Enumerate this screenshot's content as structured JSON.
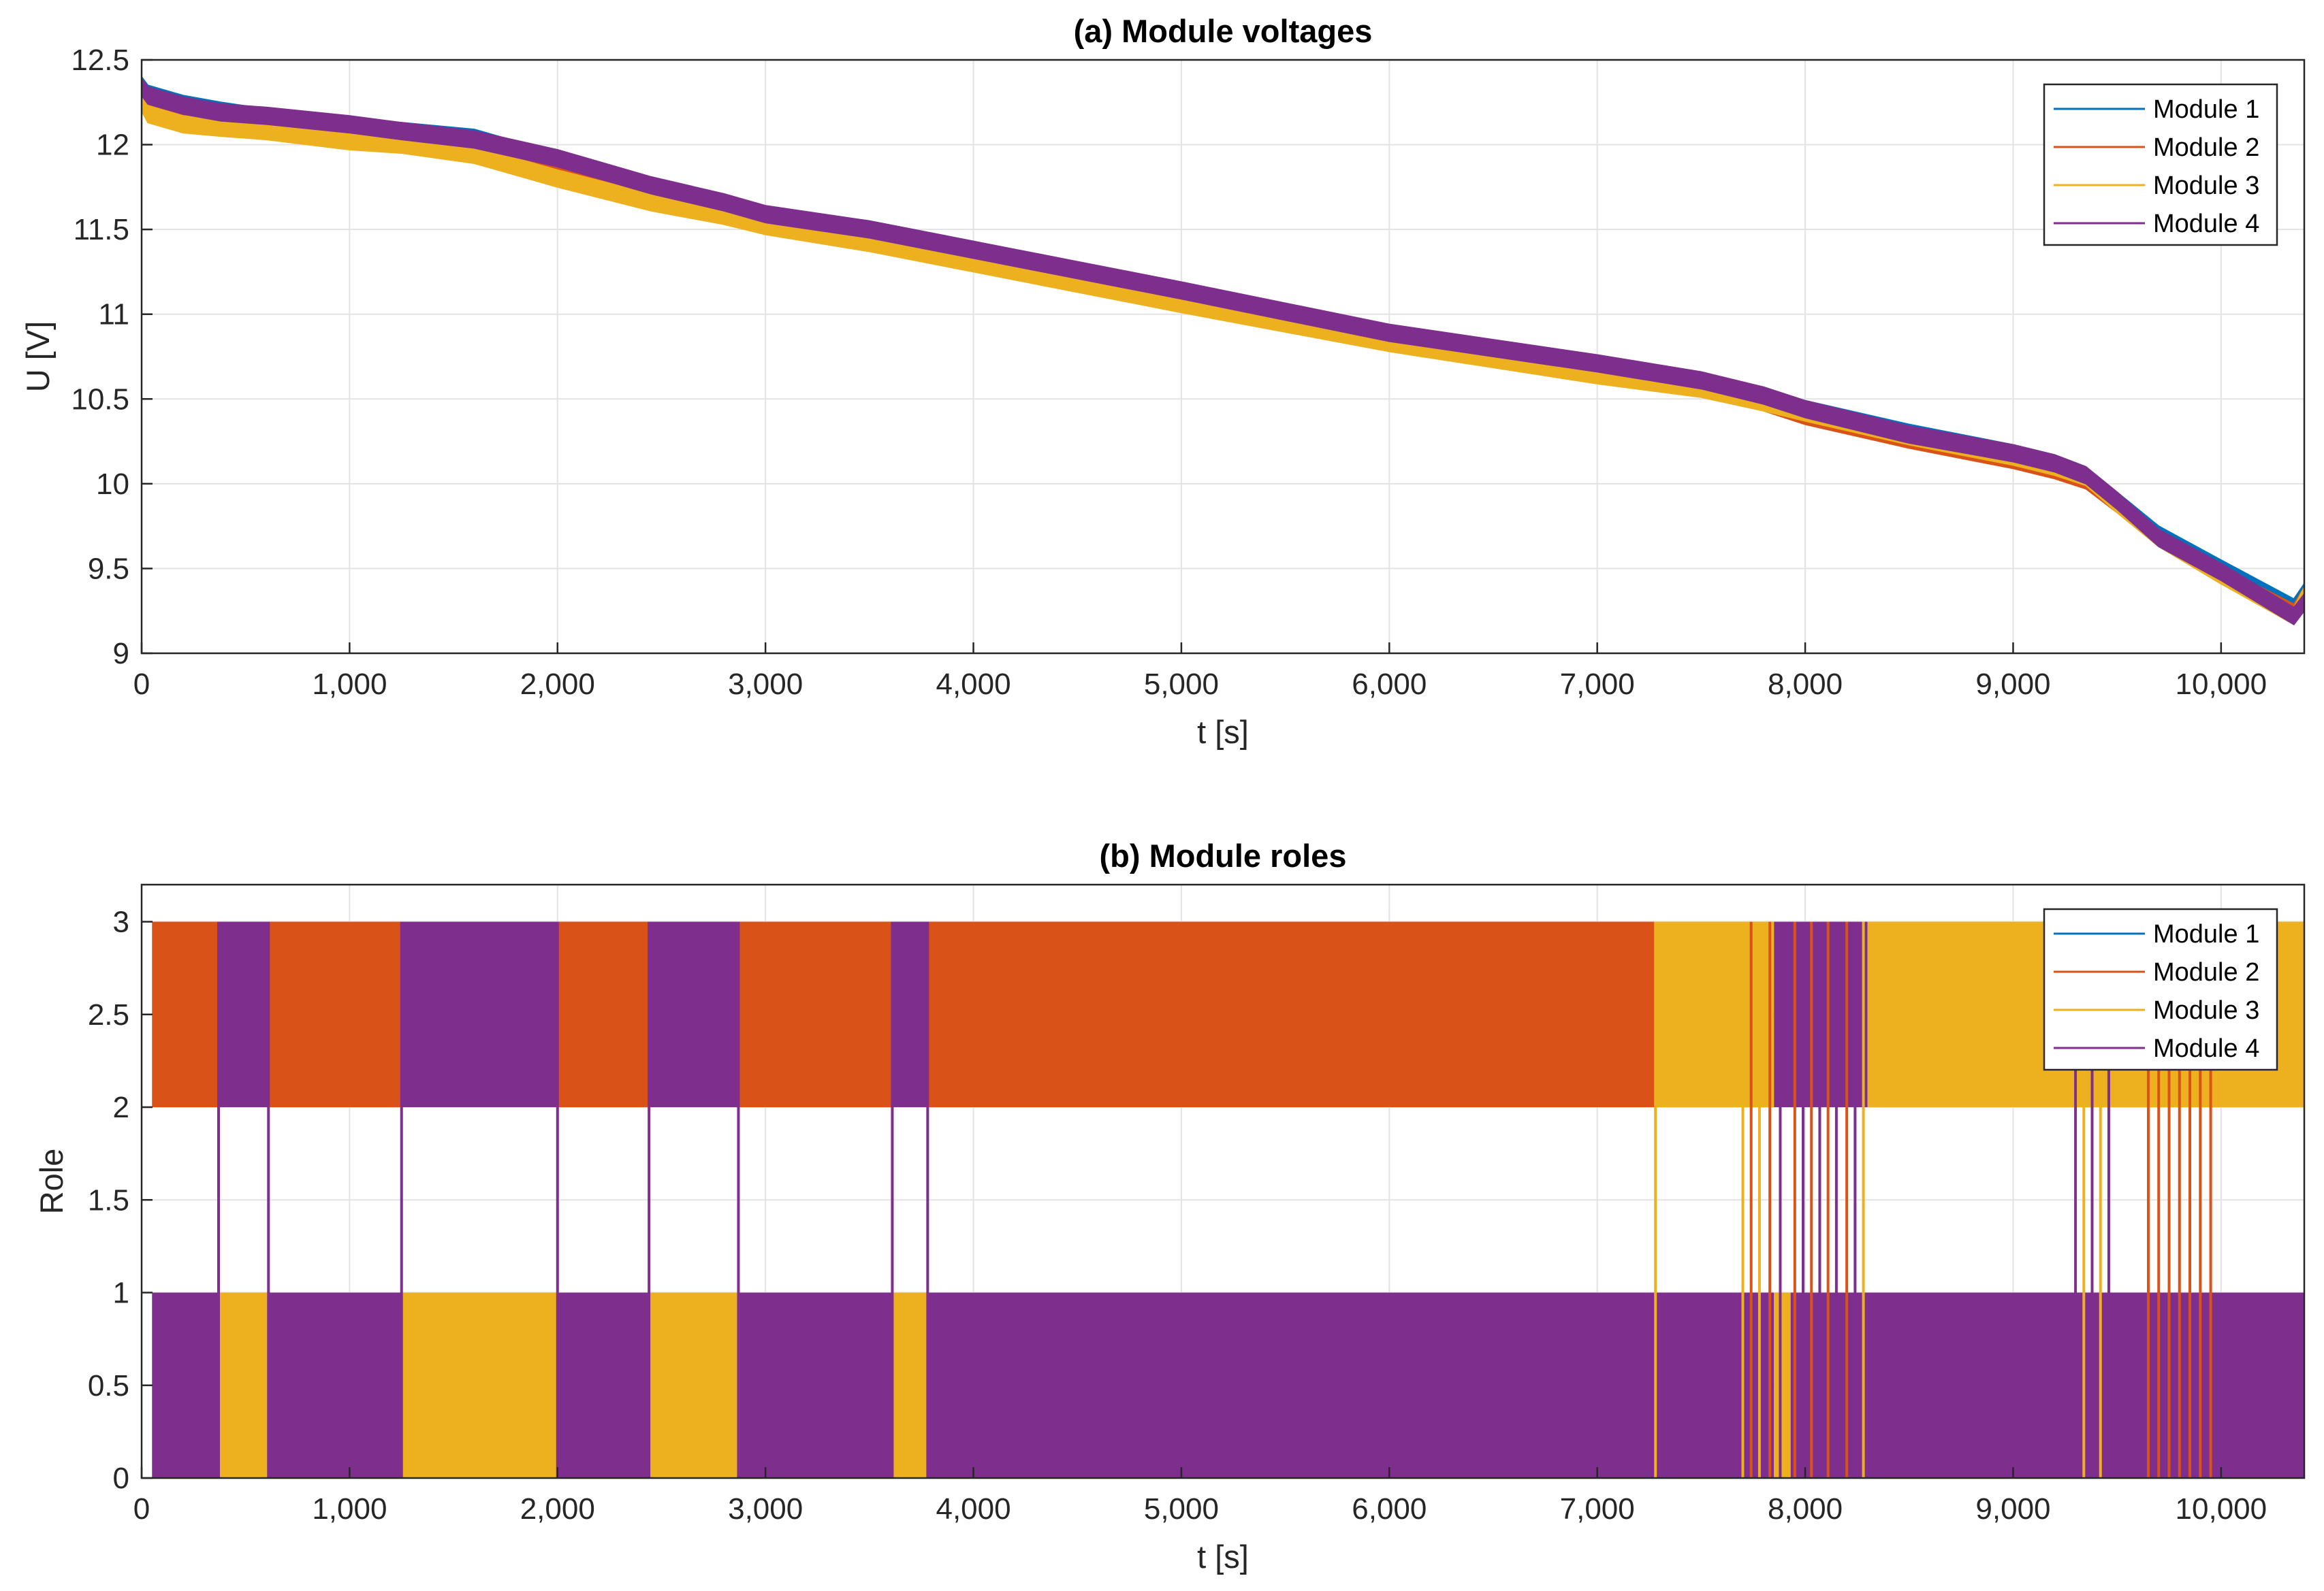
{
  "chart_data": [
    {
      "type": "line",
      "title": "(a) Module voltages",
      "xlabel": "t [s]",
      "ylabel": "U [V]",
      "xlim": [
        0,
        10400
      ],
      "ylim": [
        9,
        12.5
      ],
      "grid": true,
      "legend_position": "top-right",
      "xticks": [
        0,
        1000,
        2000,
        3000,
        4000,
        5000,
        6000,
        7000,
        8000,
        9000,
        10000
      ],
      "xtick_labels": [
        "0",
        "1,000",
        "2,000",
        "3,000",
        "4,000",
        "5,000",
        "6,000",
        "7,000",
        "8,000",
        "9,000",
        "10,000"
      ],
      "yticks": [
        9,
        9.5,
        10,
        10.5,
        11,
        11.5,
        12,
        12.5
      ],
      "ytick_labels": [
        "9",
        "9.5",
        "10",
        "10.5",
        "11",
        "11.5",
        "12",
        "12.5"
      ],
      "x": [
        0,
        30,
        200,
        380,
        600,
        1000,
        1250,
        1600,
        2000,
        2450,
        2800,
        3000,
        3500,
        4000,
        5000,
        6000,
        7000,
        7500,
        7800,
        8000,
        8500,
        9000,
        9200,
        9350,
        9500,
        9700,
        10000,
        10350,
        10400
      ],
      "series": [
        {
          "name": "Module 1",
          "color": "#0072BD",
          "values": [
            12.35,
            12.3,
            12.24,
            12.2,
            12.16,
            12.1,
            12.08,
            12.04,
            11.9,
            11.75,
            11.65,
            11.58,
            11.5,
            11.38,
            11.12,
            10.88,
            10.7,
            10.6,
            10.52,
            10.44,
            10.3,
            10.18,
            10.12,
            10.05,
            9.9,
            9.7,
            9.5,
            9.27,
            9.36
          ]
        },
        {
          "name": "Module 2",
          "color": "#D95319",
          "values": [
            12.33,
            12.28,
            12.22,
            12.18,
            12.14,
            12.08,
            12.06,
            12.02,
            11.88,
            11.73,
            11.63,
            11.56,
            11.48,
            11.36,
            11.1,
            10.86,
            10.68,
            10.58,
            10.48,
            10.4,
            10.26,
            10.14,
            10.08,
            10.02,
            9.88,
            9.68,
            9.46,
            9.24,
            9.34
          ]
        },
        {
          "name": "Module 3",
          "color": "#EDB120",
          "values": [
            12.25,
            12.18,
            12.12,
            12.1,
            12.08,
            12.02,
            12.0,
            11.94,
            11.8,
            11.66,
            11.58,
            11.52,
            11.42,
            11.3,
            11.06,
            10.83,
            10.64,
            10.56,
            10.48,
            10.42,
            10.28,
            10.16,
            10.1,
            10.04,
            9.88,
            9.68,
            9.46,
            9.22,
            9.34
          ]
        },
        {
          "name": "Module 4",
          "color": "#7E2F8E",
          "values": [
            12.34,
            12.29,
            12.23,
            12.19,
            12.17,
            12.12,
            12.08,
            12.03,
            11.92,
            11.76,
            11.66,
            11.59,
            11.5,
            11.38,
            11.14,
            10.89,
            10.71,
            10.61,
            10.52,
            10.44,
            10.29,
            10.18,
            10.12,
            10.05,
            9.9,
            9.68,
            9.48,
            9.22,
            9.3
          ]
        }
      ],
      "band_width_V": 0.1
    },
    {
      "type": "area",
      "title": "(b) Module roles",
      "xlabel": "t [s]",
      "ylabel": "Role",
      "xlim": [
        0,
        10400
      ],
      "ylim": [
        0,
        3.2
      ],
      "grid": true,
      "legend_position": "top-right",
      "xticks": [
        0,
        1000,
        2000,
        3000,
        4000,
        5000,
        6000,
        7000,
        8000,
        9000,
        10000
      ],
      "xtick_labels": [
        "0",
        "1,000",
        "2,000",
        "3,000",
        "4,000",
        "5,000",
        "6,000",
        "7,000",
        "8,000",
        "9,000",
        "10,000"
      ],
      "yticks": [
        0,
        0.5,
        1,
        1.5,
        2,
        2.5,
        3
      ],
      "ytick_labels": [
        "0",
        "0.5",
        "1",
        "1.5",
        "2",
        "2.5",
        "3"
      ],
      "series": [
        {
          "name": "Module 1",
          "color": "#0072BD"
        },
        {
          "name": "Module 2",
          "color": "#D95319"
        },
        {
          "name": "Module 3",
          "color": "#EDB120"
        },
        {
          "name": "Module 4",
          "color": "#7E2F8E"
        }
      ],
      "bands": [
        {
          "range": [
            2,
            3
          ],
          "segments": [
            {
              "x0": 50,
              "x1": 370,
              "series": "Module 2"
            },
            {
              "x0": 370,
              "x1": 610,
              "series": "Module 4"
            },
            {
              "x0": 610,
              "x1": 1250,
              "series": "Module 2"
            },
            {
              "x0": 1250,
              "x1": 2000,
              "series": "Module 4"
            },
            {
              "x0": 2000,
              "x1": 2440,
              "series": "Module 2"
            },
            {
              "x0": 2440,
              "x1": 2870,
              "series": "Module 4"
            },
            {
              "x0": 2870,
              "x1": 3610,
              "series": "Module 2"
            },
            {
              "x0": 3610,
              "x1": 3780,
              "series": "Module 4"
            },
            {
              "x0": 3780,
              "x1": 7280,
              "series": "Module 2"
            },
            {
              "x0": 7280,
              "x1": 7850,
              "series": "Module 3"
            },
            {
              "x0": 7850,
              "x1": 8300,
              "series": "Module 4"
            },
            {
              "x0": 8300,
              "x1": 10400,
              "series": "Module 3"
            }
          ]
        },
        {
          "range": [
            0,
            1
          ],
          "segments": [
            {
              "x0": 50,
              "x1": 370,
              "series": "Module 4"
            },
            {
              "x0": 370,
              "x1": 610,
              "series": "Module 3"
            },
            {
              "x0": 610,
              "x1": 1250,
              "series": "Module 4"
            },
            {
              "x0": 1250,
              "x1": 2000,
              "series": "Module 3"
            },
            {
              "x0": 2000,
              "x1": 2440,
              "series": "Module 4"
            },
            {
              "x0": 2440,
              "x1": 2870,
              "series": "Module 3"
            },
            {
              "x0": 2870,
              "x1": 3610,
              "series": "Module 4"
            },
            {
              "x0": 3610,
              "x1": 3780,
              "series": "Module 3"
            },
            {
              "x0": 3780,
              "x1": 7850,
              "series": "Module 4"
            },
            {
              "x0": 7850,
              "x1": 7930,
              "series": "Module 3"
            },
            {
              "x0": 7930,
              "x1": 10400,
              "series": "Module 4"
            }
          ]
        }
      ],
      "switch_lines": [
        {
          "x": 370,
          "series": "Module 4"
        },
        {
          "x": 610,
          "series": "Module 4"
        },
        {
          "x": 1250,
          "series": "Module 4"
        },
        {
          "x": 2000,
          "series": "Module 4"
        },
        {
          "x": 2440,
          "series": "Module 4"
        },
        {
          "x": 2870,
          "series": "Module 4"
        },
        {
          "x": 3610,
          "series": "Module 4"
        },
        {
          "x": 3780,
          "series": "Module 4"
        },
        {
          "x": 7280,
          "series": "Module 3"
        },
        {
          "x": 7700,
          "series": "Module 3"
        },
        {
          "x": 7740,
          "series": "Module 2"
        },
        {
          "x": 7780,
          "series": "Module 3"
        },
        {
          "x": 7830,
          "series": "Module 2"
        },
        {
          "x": 7880,
          "series": "Module 4"
        },
        {
          "x": 7950,
          "series": "Module 2"
        },
        {
          "x": 7990,
          "series": "Module 4"
        },
        {
          "x": 8030,
          "series": "Module 2"
        },
        {
          "x": 8070,
          "series": "Module 4"
        },
        {
          "x": 8110,
          "series": "Module 2"
        },
        {
          "x": 8150,
          "series": "Module 4"
        },
        {
          "x": 8200,
          "series": "Module 2"
        },
        {
          "x": 8240,
          "series": "Module 4"
        },
        {
          "x": 8280,
          "series": "Module 3"
        },
        {
          "x": 9300,
          "series": "Module 4"
        },
        {
          "x": 9340,
          "series": "Module 3"
        },
        {
          "x": 9380,
          "series": "Module 4"
        },
        {
          "x": 9420,
          "series": "Module 3"
        },
        {
          "x": 9460,
          "series": "Module 4"
        },
        {
          "x": 9650,
          "series": "Module 2"
        },
        {
          "x": 9700,
          "series": "Module 2"
        },
        {
          "x": 9750,
          "series": "Module 2"
        },
        {
          "x": 9800,
          "series": "Module 2"
        },
        {
          "x": 9850,
          "series": "Module 2"
        },
        {
          "x": 9900,
          "series": "Module 2"
        },
        {
          "x": 9950,
          "series": "Module 2"
        }
      ]
    }
  ]
}
